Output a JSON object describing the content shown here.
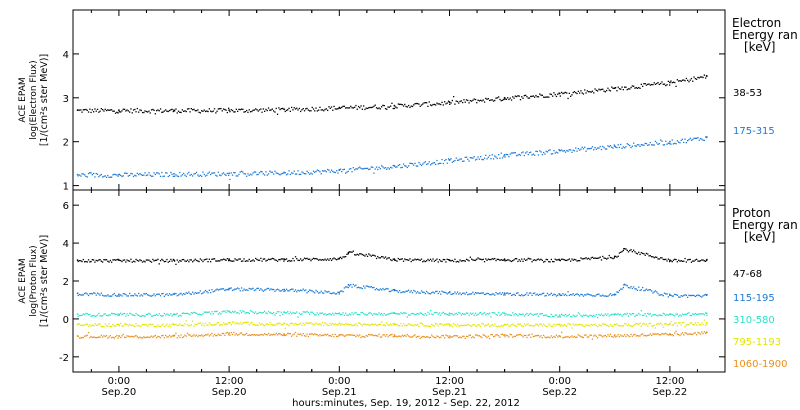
{
  "xlabel": "hours:minutes, Sep. 19, 2012 - Sep. 22, 2012",
  "x_ticks": [
    {
      "hours": 24,
      "time": "0:00",
      "date": "Sep.20"
    },
    {
      "hours": 36,
      "time": "12:00",
      "date": "Sep.20"
    },
    {
      "hours": 48,
      "time": "0:00",
      "date": "Sep.21"
    },
    {
      "hours": 60,
      "time": "12:00",
      "date": "Sep.21"
    },
    {
      "hours": 72,
      "time": "0:00",
      "date": "Sep.22"
    },
    {
      "hours": 84,
      "time": "12:00",
      "date": "Sep.22"
    }
  ],
  "chart_data": [
    {
      "type": "scatter",
      "ylabel_lines": [
        "ACE EPAM",
        "log(Electron Flux)",
        "[1/(cm²s ster MeV)]"
      ],
      "legend_title_lines": [
        "Electron",
        "Energy ran",
        "[keV]"
      ],
      "xlim": [
        19,
        90
      ],
      "ylim": [
        0.9,
        5.0
      ],
      "y_ticks": [
        1,
        2,
        3,
        4
      ],
      "series": [
        {
          "name": "38-53",
          "color": "#000000",
          "x": [
            19.5,
            24,
            30,
            36,
            42,
            48,
            54,
            60,
            66,
            72,
            78,
            84,
            88
          ],
          "y": [
            2.72,
            2.72,
            2.72,
            2.72,
            2.74,
            2.78,
            2.82,
            2.9,
            3.0,
            3.1,
            3.22,
            3.35,
            3.5
          ]
        },
        {
          "name": "175-315",
          "color": "#1c7ad6",
          "x": [
            19.5,
            24,
            30,
            36,
            42,
            48,
            54,
            60,
            66,
            72,
            78,
            84,
            88
          ],
          "y": [
            1.25,
            1.25,
            1.27,
            1.28,
            1.3,
            1.35,
            1.45,
            1.58,
            1.7,
            1.8,
            1.9,
            2.0,
            2.1
          ]
        }
      ]
    },
    {
      "type": "scatter",
      "ylabel_lines": [
        "ACE EPAM",
        "log(Proton Flux)",
        "[1/(cm²s ster MeV)]"
      ],
      "legend_title_lines": [
        "Proton",
        "Energy ran",
        "[keV]"
      ],
      "xlim": [
        19,
        90
      ],
      "ylim": [
        -2.8,
        6.8
      ],
      "y_ticks": [
        -2,
        0,
        2,
        4,
        6
      ],
      "series": [
        {
          "name": "47-68",
          "color": "#000000",
          "x": [
            19.5,
            24,
            30,
            36,
            42,
            48,
            49,
            54,
            60,
            66,
            72,
            78,
            79,
            84,
            88
          ],
          "y": [
            3.1,
            3.1,
            3.1,
            3.15,
            3.15,
            3.2,
            3.5,
            3.15,
            3.1,
            3.15,
            3.1,
            3.3,
            3.7,
            3.1,
            3.1
          ]
        },
        {
          "name": "115-195",
          "color": "#1c7ad6",
          "x": [
            19.5,
            24,
            30,
            36,
            42,
            48,
            49,
            54,
            60,
            66,
            72,
            78,
            79,
            84,
            88
          ],
          "y": [
            1.35,
            1.3,
            1.3,
            1.6,
            1.55,
            1.4,
            1.8,
            1.5,
            1.4,
            1.35,
            1.3,
            1.3,
            1.8,
            1.25,
            1.25
          ]
        },
        {
          "name": "310-580",
          "color": "#2ae0c8",
          "x": [
            19.5,
            24,
            30,
            36,
            42,
            48,
            54,
            60,
            66,
            72,
            78,
            84,
            88
          ],
          "y": [
            0.25,
            0.25,
            0.25,
            0.4,
            0.35,
            0.3,
            0.3,
            0.3,
            0.3,
            0.2,
            0.25,
            0.25,
            0.3
          ]
        },
        {
          "name": "795-1193",
          "color": "#e2e600",
          "x": [
            19.5,
            24,
            30,
            36,
            42,
            48,
            54,
            60,
            66,
            72,
            78,
            84,
            88
          ],
          "y": [
            -0.3,
            -0.3,
            -0.3,
            -0.2,
            -0.25,
            -0.25,
            -0.25,
            -0.3,
            -0.3,
            -0.3,
            -0.3,
            -0.25,
            -0.2
          ]
        },
        {
          "name": "1060-1900",
          "color": "#e8901c",
          "x": [
            19.5,
            24,
            30,
            36,
            42,
            48,
            54,
            60,
            66,
            72,
            78,
            84,
            88
          ],
          "y": [
            -0.9,
            -0.9,
            -0.9,
            -0.75,
            -0.8,
            -0.85,
            -0.85,
            -0.9,
            -0.85,
            -0.9,
            -0.85,
            -0.8,
            -0.7
          ]
        }
      ]
    }
  ]
}
